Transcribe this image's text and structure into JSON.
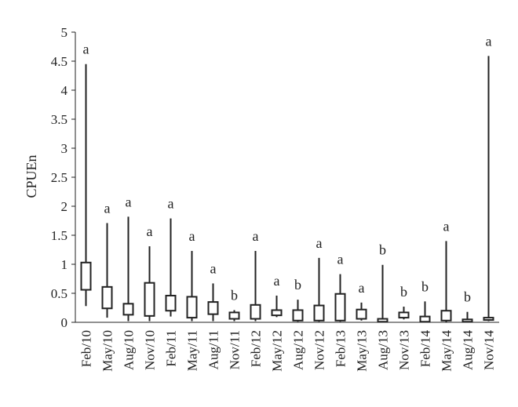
{
  "chart_data": {
    "type": "boxplot",
    "ylabel": "CPUEn",
    "ylim": [
      0,
      5
    ],
    "y_ticks": [
      "0",
      "0.5",
      "1",
      "1.5",
      "2",
      "2.5",
      "3",
      "3.5",
      "4",
      "4.5",
      "5"
    ],
    "grid": false,
    "categories": [
      "Feb/10",
      "May/10",
      "Aug/10",
      "Nov/10",
      "Feb/11",
      "May/11",
      "Aug/11",
      "Nov/11",
      "Feb/12",
      "May/12",
      "Aug/12",
      "Nov/12",
      "Feb/13",
      "May/13",
      "Aug/13",
      "Nov/13",
      "Feb/14",
      "May/14",
      "Aug/14",
      "Nov/14"
    ],
    "boxes": [
      {
        "min": 0.28,
        "q1": 0.56,
        "q3": 1.03,
        "max": 4.45,
        "label": "a"
      },
      {
        "min": 0.08,
        "q1": 0.24,
        "q3": 0.61,
        "max": 1.71,
        "label": "a"
      },
      {
        "min": 0.02,
        "q1": 0.13,
        "q3": 0.32,
        "max": 1.82,
        "label": "a"
      },
      {
        "min": 0.02,
        "q1": 0.11,
        "q3": 0.68,
        "max": 1.31,
        "label": "a"
      },
      {
        "min": 0.1,
        "q1": 0.2,
        "q3": 0.46,
        "max": 1.79,
        "label": "a"
      },
      {
        "min": 0.02,
        "q1": 0.08,
        "q3": 0.44,
        "max": 1.23,
        "label": "a"
      },
      {
        "min": 0.02,
        "q1": 0.14,
        "q3": 0.35,
        "max": 0.67,
        "label": "a"
      },
      {
        "min": 0.02,
        "q1": 0.06,
        "q3": 0.17,
        "max": 0.21,
        "label": "b"
      },
      {
        "min": 0.02,
        "q1": 0.06,
        "q3": 0.3,
        "max": 1.23,
        "label": "a"
      },
      {
        "min": 0.09,
        "q1": 0.12,
        "q3": 0.21,
        "max": 0.46,
        "label": "a"
      },
      {
        "min": 0.01,
        "q1": 0.03,
        "q3": 0.21,
        "max": 0.39,
        "label": "b"
      },
      {
        "min": 0.01,
        "q1": 0.03,
        "q3": 0.29,
        "max": 1.11,
        "label": "a"
      },
      {
        "min": 0.01,
        "q1": 0.03,
        "q3": 0.49,
        "max": 0.83,
        "label": "a"
      },
      {
        "min": 0.03,
        "q1": 0.06,
        "q3": 0.22,
        "max": 0.34,
        "label": "a"
      },
      {
        "min": 0.0,
        "q1": 0.01,
        "q3": 0.06,
        "max": 0.99,
        "label": "b"
      },
      {
        "min": 0.05,
        "q1": 0.08,
        "q3": 0.17,
        "max": 0.27,
        "label": "b"
      },
      {
        "min": 0.0,
        "q1": 0.01,
        "q3": 0.1,
        "max": 0.36,
        "label": "b"
      },
      {
        "min": 0.0,
        "q1": 0.03,
        "q3": 0.2,
        "max": 1.4,
        "label": "a"
      },
      {
        "min": 0.0,
        "q1": 0.01,
        "q3": 0.05,
        "max": 0.18,
        "label": "b"
      },
      {
        "min": 0.02,
        "q1": 0.04,
        "q3": 0.08,
        "max": 4.59,
        "label": "a"
      }
    ]
  }
}
